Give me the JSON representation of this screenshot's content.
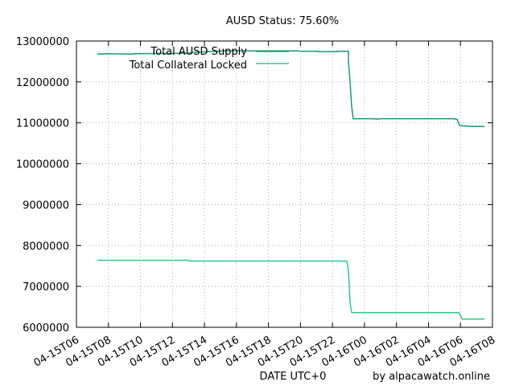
{
  "chart_data": {
    "type": "line",
    "title": "AUSD Status: 75.60%",
    "xlabel": "DATE UTC+0",
    "ylabel": "",
    "credit": "by alpacawatch.online",
    "ylim": [
      6000000,
      13000000
    ],
    "yticks": [
      "6000000",
      "7000000",
      "8000000",
      "9000000",
      "10000000",
      "11000000",
      "12000000",
      "13000000"
    ],
    "xticks": [
      "04-15T06",
      "04-15T08",
      "04-15T10",
      "04-15T12",
      "04-15T14",
      "04-15T16",
      "04-15T18",
      "04-15T20",
      "04-15T22",
      "04-16T00",
      "04-16T02",
      "04-16T04",
      "04-16T06",
      "04-16T08"
    ],
    "xlim_hours": [
      6,
      32
    ],
    "grid": true,
    "legend_position": "top-left",
    "series": [
      {
        "name": "Total AUSD Supply",
        "color": "#1a9a6c",
        "points": [
          [
            7.3,
            12680000
          ],
          [
            7.9,
            12690000
          ],
          [
            9.6,
            12680000
          ],
          [
            9.6,
            12690000
          ],
          [
            13.0,
            12700000
          ],
          [
            13.2,
            12720000
          ],
          [
            15.0,
            12750000
          ],
          [
            15.0,
            12760000
          ],
          [
            19.8,
            12760000
          ],
          [
            20.0,
            12750000
          ],
          [
            21.1,
            12750000
          ],
          [
            21.1,
            12740000
          ],
          [
            22.3,
            12740000
          ],
          [
            22.3,
            12750000
          ],
          [
            23.0,
            12750000
          ],
          [
            23.0,
            12520000
          ],
          [
            23.1,
            12000000
          ],
          [
            23.2,
            11400000
          ],
          [
            23.3,
            11100000
          ],
          [
            24.5,
            11100000
          ],
          [
            24.8,
            11090000
          ],
          [
            25.0,
            11100000
          ],
          [
            29.6,
            11100000
          ],
          [
            29.8,
            11080000
          ],
          [
            29.9,
            10970000
          ],
          [
            30.0,
            10930000
          ],
          [
            30.4,
            10920000
          ],
          [
            30.7,
            10910000
          ],
          [
            31.5,
            10910000
          ]
        ]
      },
      {
        "name": "Total Collateral Locked",
        "color": "#2ecc8a",
        "points": [
          [
            7.3,
            7640000
          ],
          [
            13.0,
            7640000
          ],
          [
            13.0,
            7620000
          ],
          [
            22.9,
            7620000
          ],
          [
            23.0,
            7400000
          ],
          [
            23.1,
            6600000
          ],
          [
            23.2,
            6360000
          ],
          [
            29.9,
            6360000
          ],
          [
            30.0,
            6280000
          ],
          [
            30.1,
            6200000
          ],
          [
            31.5,
            6200000
          ]
        ]
      }
    ]
  }
}
